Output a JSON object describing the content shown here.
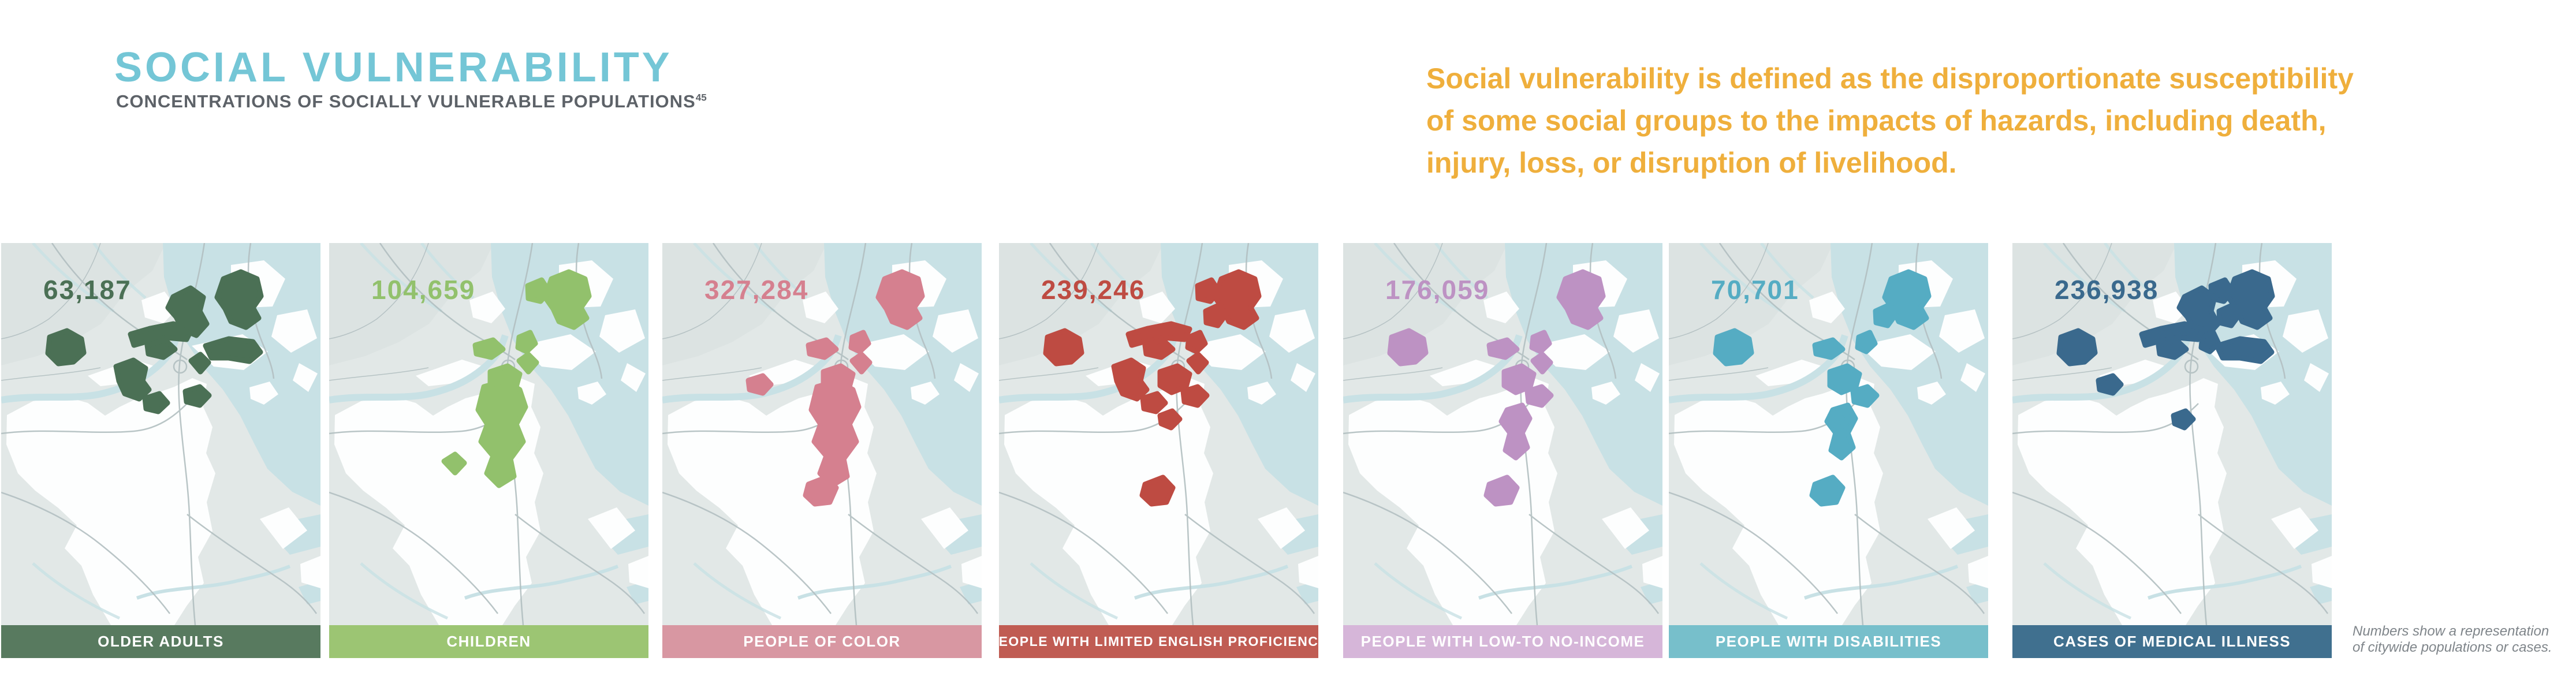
{
  "header": {
    "title": "SOCIAL VULNERABILITY",
    "subtitle": "CONCENTRATIONS OF SOCIALLY VULNERABLE POPULATIONS",
    "subtitle_superscript": "45"
  },
  "definition": {
    "lines": [
      "Social vulnerability is defined as the disproportionate susceptibility",
      "of some social groups to the impacts of hazards, including death,",
      "injury, loss, or disruption of livelihood."
    ]
  },
  "footnote": {
    "line1": "Numbers show a representation",
    "line2": "of citywide populations or cases."
  },
  "theme": {
    "title_color": "#74c6d6",
    "subtitle_color": "#5d6268",
    "definition_color": "#efaf3c",
    "footnote_color": "#7f858a",
    "label_text_color": "#ffffff"
  },
  "basemap_colors": {
    "background": "#e2e8e7",
    "background_alt": "#dce3e2",
    "water": "#c8e1e5",
    "land": "#fdfefe",
    "roads": "#b2bfc1"
  },
  "maps": [
    {
      "value": "63,187",
      "label": "OLDER ADULTS",
      "color": "#4b7055",
      "bar_color": "#587a5f",
      "highlighted_areas": [
        "wt",
        "al",
        "al2",
        "ch",
        "eb1",
        "sb",
        "sbd",
        "br",
        "brs",
        "jp"
      ]
    },
    {
      "value": "104,659",
      "label": "CHILDREN",
      "color": "#92c16c",
      "bar_color": "#9cc573",
      "highlighted_areas": [
        "eb2",
        "eb1",
        "dt",
        "al2",
        "rx",
        "dor",
        "hp",
        "sbd"
      ]
    },
    {
      "value": "327,284",
      "label": "PEOPLE OF COLOR",
      "color": "#d5808f",
      "bar_color": "#d897a2",
      "highlighted_areas": [
        "eb1",
        "ws",
        "al2",
        "dt",
        "rx",
        "dor",
        "mat",
        "sbd"
      ]
    },
    {
      "value": "239,246",
      "label": "PEOPLE WITH LIMITED ENGLISH PROFICIENCY",
      "color": "#be4b42",
      "bar_color": "#c05c53",
      "highlighted_areas": [
        "eb1",
        "eb2",
        "eb3",
        "dt",
        "wt",
        "al",
        "al2",
        "rx",
        "br",
        "brs",
        "np",
        "jp",
        "sbd",
        "mat"
      ]
    },
    {
      "value": "176,059",
      "label": "PEOPLE WITH LOW-TO NO-INCOME",
      "color": "#bd92c3",
      "bar_color": "#d6b6d9",
      "highlighted_areas": [
        "eb1",
        "dt",
        "wt",
        "al2",
        "rx",
        "sbd",
        "np",
        "jp",
        "mat",
        "dor2"
      ]
    },
    {
      "value": "70,701",
      "label": "PEOPLE WITH DISABILITIES",
      "color": "#55acc3",
      "bar_color": "#77bfcb",
      "highlighted_areas": [
        "eb1",
        "eb3",
        "dt",
        "wt",
        "al2",
        "rx",
        "dor2",
        "np",
        "mat",
        "jp"
      ]
    },
    {
      "value": "236,938",
      "label": "CASES OF MEDICAL ILLNESS",
      "color": "#3a698d",
      "bar_color": "#40708f",
      "highlighted_areas": [
        "eb1",
        "eb2",
        "eb3",
        "ch",
        "dt",
        "al",
        "al2",
        "wt",
        "ws",
        "sb",
        "np"
      ]
    }
  ]
}
